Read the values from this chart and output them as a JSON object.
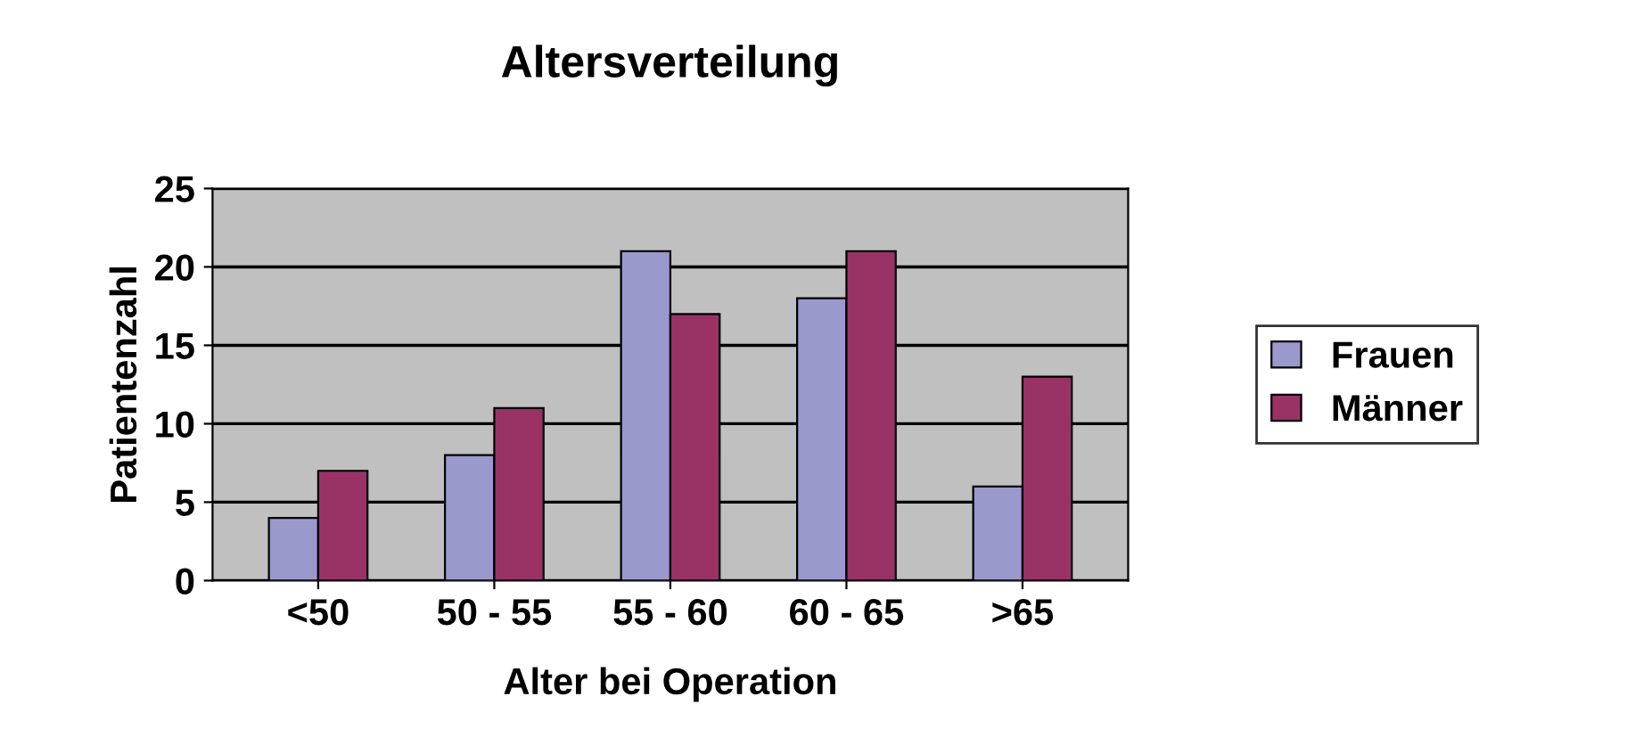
{
  "chart_data": {
    "type": "bar",
    "title": "Altersverteilung",
    "xlabel": "Alter bei Operation",
    "ylabel": "Patientenzahl",
    "categories": [
      "<50",
      "50 - 55",
      "55 - 60",
      "60 - 65",
      ">65"
    ],
    "series": [
      {
        "name": "Frauen",
        "color": "#9999cc",
        "values": [
          4,
          8,
          21,
          18,
          6
        ]
      },
      {
        "name": "Männer",
        "color": "#993366",
        "values": [
          7,
          11,
          17,
          21,
          13
        ]
      }
    ],
    "ylim": [
      0,
      25
    ],
    "yticks": [
      0,
      5,
      10,
      15,
      20,
      25
    ],
    "grid": "y",
    "legend": "right"
  }
}
